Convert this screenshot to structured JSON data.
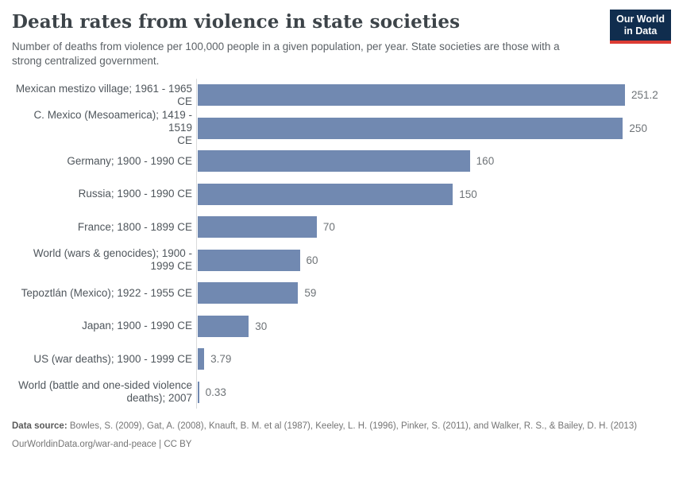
{
  "header": {
    "title": "Death rates from violence in state societies",
    "subtitle": "Number of deaths from violence per 100,000 people in a given population, per year. State societies are those with a strong centralized government.",
    "logo": {
      "line1": "Our World",
      "line2": "in Data"
    }
  },
  "chart_data": {
    "type": "bar",
    "orientation": "horizontal",
    "title": "Death rates from violence in state societies",
    "subtitle": "Number of deaths from violence per 100,000 people in a given population, per year. State societies are those with a strong centralized government.",
    "categories": [
      "Mexican mestizo village; 1961 - 1965\nCE",
      "C. Mexico (Mesoamerica); 1419 - 1519\nCE",
      "Germany; 1900 - 1990 CE",
      "Russia; 1900 - 1990 CE",
      "France; 1800 - 1899 CE",
      "World (wars & genocides); 1900 -\n1999 CE",
      "Tepoztlán (Mexico); 1922 - 1955 CE",
      "Japan; 1900 - 1990 CE",
      "US (war deaths); 1900 - 1999 CE",
      "World (battle and one-sided violence\ndeaths); 2007"
    ],
    "values": [
      251.2,
      250,
      160,
      150,
      70,
      60,
      59,
      30,
      3.79,
      0.33
    ],
    "value_labels": [
      "251.2",
      "250",
      "160",
      "150",
      "70",
      "60",
      "59",
      "30",
      "3.79",
      "0.33"
    ],
    "xlim": [
      0,
      251.2
    ],
    "grid": false,
    "legend": "none",
    "bar_color": "#7189b1",
    "axis_line_color": "#d9dbdc"
  },
  "footer": {
    "data_source_label": "Data source:",
    "data_source_text": "Bowles, S. (2009), Gat, A. (2008), Knauft, B. M. et al (1987), Keeley, L. H. (1996), Pinker, S. (2011), and Walker, R. S., & Bailey, D. H. (2013)",
    "link_line": "OurWorldinData.org/war-and-peace | CC BY"
  }
}
